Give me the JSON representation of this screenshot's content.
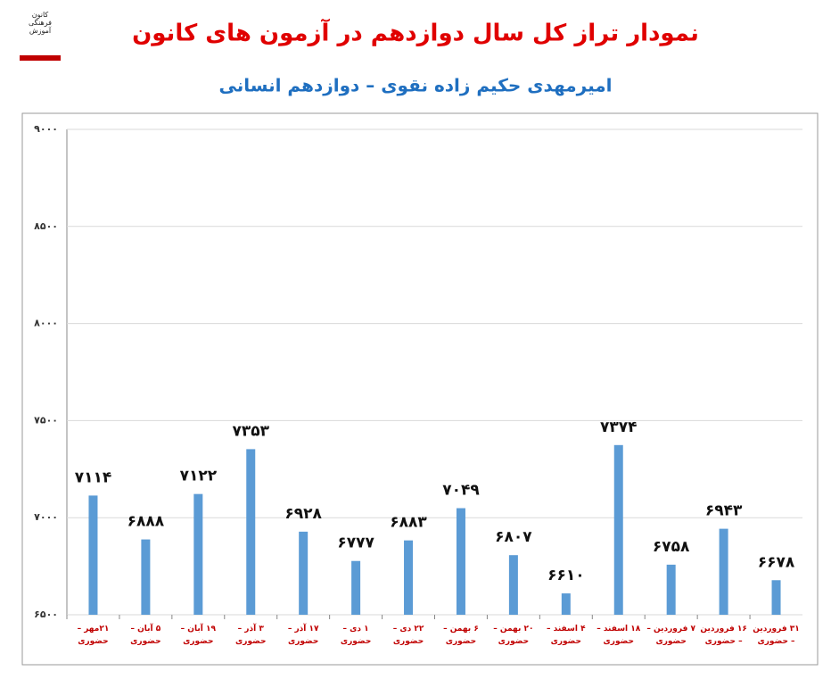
{
  "logo": "کانون فرهنگی آموزش",
  "chart_data": {
    "type": "bar",
    "title": "نمودار تراز کل سال دوازدهم در آزمون های کانون",
    "subtitle": "امیرمهدی حکیم زاده نقوی – دوازدهم انسانی",
    "categories": [
      "۲۱مهر – حضوری",
      "۵ آبان – حضوری",
      "۱۹ آبان – حضوری",
      "۳ آذر – حضوری",
      "۱۷ آذر – حضوری",
      "۱ دی – حضوری",
      "۲۲ دی – حضوری",
      "۶ بهمن – حضوری",
      "۲۰ بهمن – حضوری",
      "۴ اسفند – حضوری",
      "۱۸ اسفند – حضوری",
      "۷ فروردین – حضوری",
      "۱۶ فروردین – حضوری",
      "۳۱ فروردین – حضوری"
    ],
    "values": [
      7114,
      6888,
      7122,
      7353,
      6928,
      6777,
      6883,
      7049,
      6807,
      6610,
      7374,
      6758,
      6943,
      6678
    ],
    "value_labels": [
      "۷۱۱۴",
      "۶۸۸۸",
      "۷۱۲۲",
      "۷۳۵۳",
      "۶۹۲۸",
      "۶۷۷۷",
      "۶۸۸۳",
      "۷۰۴۹",
      "۶۸۰۷",
      "۶۶۱۰",
      "۷۳۷۴",
      "۶۷۵۸",
      "۶۹۴۳",
      "۶۶۷۸"
    ],
    "color": "#5b9bd5",
    "ylim": [
      6500,
      9000
    ],
    "yticks": [
      {
        "value": 6500,
        "label": "۶۵۰۰"
      },
      {
        "value": 7000,
        "label": "۷۰۰۰"
      },
      {
        "value": 7500,
        "label": "۷۵۰۰"
      },
      {
        "value": 8000,
        "label": "۸۰۰۰"
      },
      {
        "value": 8500,
        "label": "۸۵۰۰"
      },
      {
        "value": 9000,
        "label": "۹۰۰۰"
      }
    ],
    "grid": true
  }
}
